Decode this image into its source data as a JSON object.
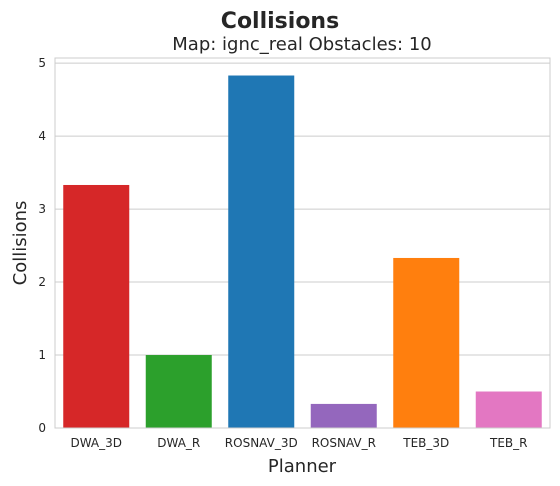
{
  "chart_data": {
    "type": "bar",
    "title": "Collisions",
    "subtitle": "Map: ignc_real Obstacles: 10",
    "xlabel": "Planner",
    "ylabel": "Collisions",
    "categories": [
      "DWA_3D",
      "DWA_R",
      "ROSNAV_3D",
      "ROSNAV_R",
      "TEB_3D",
      "TEB_R"
    ],
    "values": [
      3.33,
      1.0,
      4.83,
      0.33,
      2.33,
      0.5
    ],
    "colors": [
      "#d62728",
      "#2ca02c",
      "#1f77b4",
      "#9467bd",
      "#ff7f0e",
      "#e377c2"
    ],
    "ylim": [
      0,
      5.07
    ],
    "yticks": [
      "0",
      "1",
      "2",
      "3",
      "4",
      "5"
    ],
    "grid": true
  }
}
